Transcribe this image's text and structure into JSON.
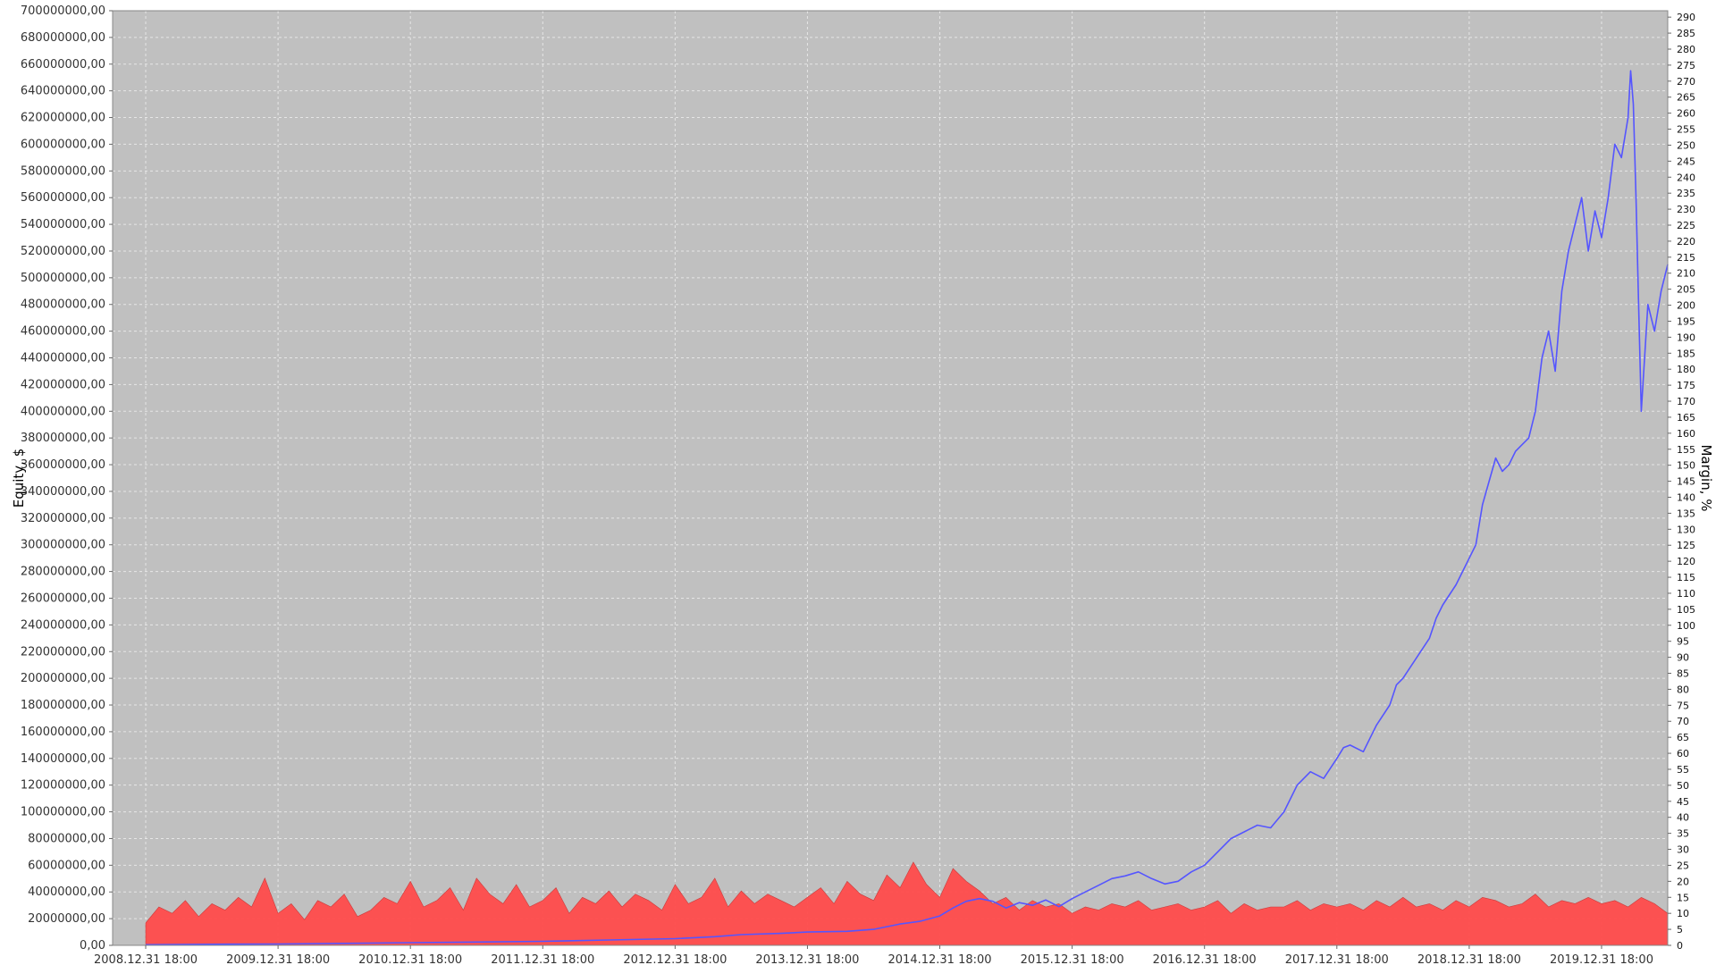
{
  "chart_data": {
    "type": "line",
    "xlabel": "",
    "ylabel": "Equity, $",
    "ylabel_right": "Margin, %",
    "x_tick_labels": [
      "2008.12.31 18:00",
      "2009.12.31 18:00",
      "2010.12.31 18:00",
      "2011.12.31 18:00",
      "2012.12.31 18:00",
      "2013.12.31 18:00",
      "2014.12.31 18:00",
      "2015.12.31 18:00",
      "2016.12.31 18:00",
      "2017.12.31 18:00",
      "2018.12.31 18:00",
      "2019.12.31 18:00"
    ],
    "xlim": [
      2008.75,
      2020.5
    ],
    "ylim": [
      0,
      700000000
    ],
    "y_tick_step": 20000000,
    "y2lim": [
      0,
      292
    ],
    "y2_tick_step": 5,
    "grid": true,
    "series": [
      {
        "role": "equity",
        "axis": "left",
        "color": "#5555ff",
        "x": [
          2009.0,
          2009.5,
          2010.0,
          2010.5,
          2011.0,
          2011.5,
          2012.0,
          2012.5,
          2013.0,
          2013.3,
          2013.5,
          2013.8,
          2014.0,
          2014.3,
          2014.5,
          2014.7,
          2014.85,
          2015.0,
          2015.1,
          2015.2,
          2015.3,
          2015.4,
          2015.5,
          2015.6,
          2015.7,
          2015.8,
          2015.9,
          2016.0,
          2016.1,
          2016.2,
          2016.3,
          2016.4,
          2016.5,
          2016.6,
          2016.7,
          2016.8,
          2016.9,
          2017.0,
          2017.1,
          2017.2,
          2017.3,
          2017.4,
          2017.5,
          2017.6,
          2017.7,
          2017.8,
          2017.9,
          2018.0,
          2018.05,
          2018.1,
          2018.2,
          2018.3,
          2018.4,
          2018.45,
          2018.5,
          2018.6,
          2018.7,
          2018.75,
          2018.8,
          2018.9,
          2019.0,
          2019.05,
          2019.1,
          2019.2,
          2019.25,
          2019.3,
          2019.35,
          2019.4,
          2019.45,
          2019.5,
          2019.55,
          2019.6,
          2019.65,
          2019.7,
          2019.75,
          2019.8,
          2019.85,
          2019.9,
          2019.95,
          2020.0,
          2020.05,
          2020.1,
          2020.15,
          2020.2,
          2020.22,
          2020.24,
          2020.26,
          2020.28,
          2020.3,
          2020.35,
          2020.4,
          2020.45,
          2020.5
        ],
        "y": [
          500000,
          800000,
          1000000,
          1500000,
          2000000,
          2500000,
          3000000,
          4000000,
          5000000,
          6500000,
          8000000,
          9000000,
          10000000,
          10500000,
          12000000,
          16000000,
          18000000,
          22000000,
          28000000,
          33000000,
          35000000,
          33000000,
          28000000,
          32000000,
          30000000,
          34000000,
          29000000,
          35000000,
          40000000,
          45000000,
          50000000,
          52000000,
          55000000,
          50000000,
          46000000,
          48000000,
          55000000,
          60000000,
          70000000,
          80000000,
          85000000,
          90000000,
          88000000,
          100000000,
          120000000,
          130000000,
          125000000,
          140000000,
          148000000,
          150000000,
          145000000,
          165000000,
          180000000,
          195000000,
          200000000,
          215000000,
          230000000,
          245000000,
          255000000,
          270000000,
          290000000,
          300000000,
          330000000,
          365000000,
          355000000,
          360000000,
          370000000,
          375000000,
          380000000,
          400000000,
          440000000,
          460000000,
          430000000,
          490000000,
          520000000,
          540000000,
          560000000,
          520000000,
          550000000,
          530000000,
          560000000,
          600000000,
          590000000,
          620000000,
          655000000,
          630000000,
          560000000,
          480000000,
          400000000,
          480000000,
          460000000,
          490000000,
          510000000
        ]
      },
      {
        "role": "margin",
        "axis": "right",
        "color": "#ff4b4b",
        "x": [
          2009.0,
          2009.1,
          2009.2,
          2009.3,
          2009.4,
          2009.5,
          2009.6,
          2009.7,
          2009.8,
          2009.9,
          2010.0,
          2010.1,
          2010.2,
          2010.3,
          2010.4,
          2010.5,
          2010.6,
          2010.7,
          2010.8,
          2010.9,
          2011.0,
          2011.1,
          2011.2,
          2011.3,
          2011.4,
          2011.5,
          2011.6,
          2011.7,
          2011.8,
          2011.9,
          2012.0,
          2012.1,
          2012.2,
          2012.3,
          2012.4,
          2012.5,
          2012.6,
          2012.7,
          2012.8,
          2012.9,
          2013.0,
          2013.1,
          2013.2,
          2013.3,
          2013.4,
          2013.5,
          2013.6,
          2013.7,
          2013.8,
          2013.9,
          2014.0,
          2014.1,
          2014.2,
          2014.3,
          2014.4,
          2014.5,
          2014.6,
          2014.7,
          2014.8,
          2014.9,
          2015.0,
          2015.1,
          2015.2,
          2015.3,
          2015.4,
          2015.5,
          2015.6,
          2015.7,
          2015.8,
          2015.9,
          2016.0,
          2016.1,
          2016.2,
          2016.3,
          2016.4,
          2016.5,
          2016.6,
          2016.7,
          2016.8,
          2016.9,
          2017.0,
          2017.1,
          2017.2,
          2017.3,
          2017.4,
          2017.5,
          2017.6,
          2017.7,
          2017.8,
          2017.9,
          2018.0,
          2018.1,
          2018.2,
          2018.3,
          2018.4,
          2018.5,
          2018.6,
          2018.7,
          2018.8,
          2018.9,
          2019.0,
          2019.1,
          2019.2,
          2019.3,
          2019.4,
          2019.5,
          2019.6,
          2019.7,
          2019.8,
          2019.9,
          2020.0,
          2020.1,
          2020.2,
          2020.3,
          2020.4,
          2020.5
        ],
        "y": [
          7,
          12,
          10,
          14,
          9,
          13,
          11,
          15,
          12,
          21,
          10,
          13,
          8,
          14,
          12,
          16,
          9,
          11,
          15,
          13,
          20,
          12,
          14,
          18,
          11,
          21,
          16,
          13,
          19,
          12,
          14,
          18,
          10,
          15,
          13,
          17,
          12,
          16,
          14,
          11,
          19,
          13,
          15,
          21,
          12,
          17,
          13,
          16,
          14,
          12,
          15,
          18,
          13,
          20,
          16,
          14,
          22,
          18,
          26,
          19,
          15,
          24,
          20,
          17,
          13,
          15,
          11,
          14,
          12,
          13,
          10,
          12,
          11,
          13,
          12,
          14,
          11,
          12,
          13,
          11,
          12,
          14,
          10,
          13,
          11,
          12,
          12,
          14,
          11,
          13,
          12,
          13,
          11,
          14,
          12,
          15,
          12,
          13,
          11,
          14,
          12,
          15,
          14,
          12,
          13,
          16,
          12,
          14,
          13,
          15,
          13,
          14,
          12,
          15,
          13,
          10
        ]
      }
    ]
  }
}
